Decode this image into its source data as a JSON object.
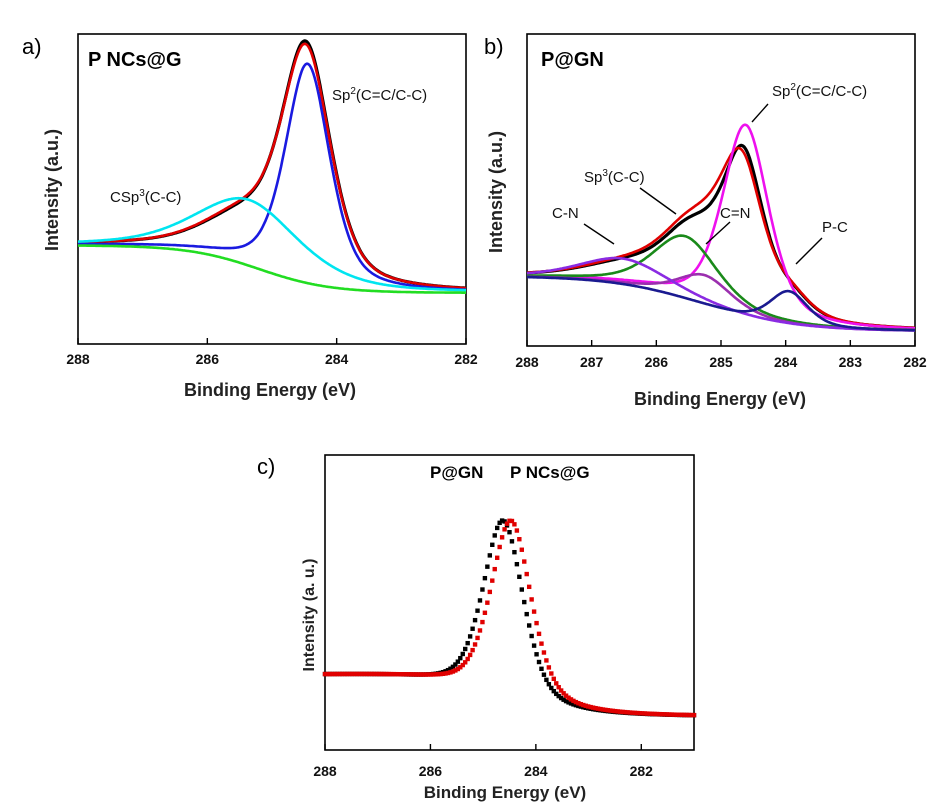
{
  "chart_data": [
    {
      "panel": "a)",
      "type": "line",
      "title": "P NCs@G",
      "xlabel": "Binding Energy (eV)",
      "ylabel": "Intensity (a.u.)",
      "xlim": [
        288,
        282
      ],
      "xticks": [
        288,
        286,
        284,
        282
      ],
      "xtick_labels": [
        "288",
        "286",
        "284",
        "282"
      ],
      "ylim": [
        0,
        1
      ],
      "grid": false,
      "annotations": [
        {
          "text": "CSp",
          "sup": "3",
          "rest": "(C-C)",
          "x": 286.6,
          "y": 0.5
        },
        {
          "text": "Sp",
          "sup": "2",
          "rest": "(C=C/C-C)",
          "x": 284.1,
          "y": 0.88
        }
      ],
      "series": [
        {
          "color": "#000000",
          "width": 3.2,
          "type": "pv",
          "peaks": [
            {
              "c": 284.47,
              "a": 0.62,
              "w": 0.9
            },
            {
              "c": 285.4,
              "a": 0.11,
              "w": 1.5
            }
          ],
          "bg": {
            "a": 0.27,
            "b": 0.14,
            "c": 285.2,
            "w": 0.55
          }
        },
        {
          "color": "#e00000",
          "width": 2.6,
          "type": "pv",
          "peaks": [
            {
              "c": 284.47,
              "a": 0.61,
              "w": 0.9
            },
            {
              "c": 285.4,
              "a": 0.115,
              "w": 1.5
            }
          ],
          "bg": {
            "a": 0.27,
            "b": 0.14,
            "c": 285.2,
            "w": 0.55
          }
        },
        {
          "color": "#1a1ae0",
          "width": 2.6,
          "type": "pv",
          "peaks": [
            {
              "c": 284.45,
              "a": 0.6,
              "w": 0.82
            }
          ],
          "bg": {
            "a": 0.27,
            "b": 0.14,
            "c": 285.2,
            "w": 0.55
          }
        },
        {
          "color": "#00e5f0",
          "width": 2.6,
          "type": "pv",
          "peaks": [
            {
              "c": 285.35,
              "a": 0.18,
              "w": 1.9
            }
          ],
          "bg": {
            "a": 0.27,
            "b": 0.14,
            "c": 285.2,
            "w": 0.55
          }
        },
        {
          "color": "#22dd22",
          "width": 2.6,
          "type": "bg",
          "bg": {
            "a": 0.27,
            "b": 0.14,
            "c": 285.2,
            "w": 0.55
          }
        }
      ]
    },
    {
      "panel": "b)",
      "type": "line",
      "title": "P@GN",
      "xlabel": "Binding Energy (eV)",
      "ylabel": "Intensity (a.u.)",
      "xlim": [
        288,
        282
      ],
      "xticks": [
        288,
        287,
        286,
        285,
        284,
        283,
        282
      ],
      "xtick_labels": [
        "288",
        "287",
        "286",
        "285",
        "284",
        "283",
        "282"
      ],
      "ylim": [
        0,
        1
      ],
      "grid": false,
      "annotations": [
        {
          "text": "Sp",
          "sup": "2",
          "rest": "(C=C/C-C)",
          "x": 284.4,
          "y": 0.82
        },
        {
          "text": "Sp",
          "sup": "3",
          "rest": "(C-C)",
          "x": 286.2,
          "y": 0.6
        },
        {
          "text": "C=N",
          "sup": "",
          "rest": "",
          "x": 285.0,
          "y": 0.5
        },
        {
          "text": "C-N",
          "sup": "",
          "rest": "",
          "x": 287.1,
          "y": 0.48
        },
        {
          "text": "P-C",
          "sup": "",
          "rest": "",
          "x": 283.5,
          "y": 0.4
        }
      ],
      "series": [
        {
          "color": "#000000",
          "width": 3.2,
          "type": "pv",
          "peaks": [
            {
              "c": 284.65,
              "a": 0.4,
              "w": 0.75
            },
            {
              "c": 285.5,
              "a": 0.13,
              "w": 1.1
            },
            {
              "c": 285.25,
              "a": 0.05,
              "w": 1.0
            },
            {
              "c": 286.5,
              "a": 0.04,
              "w": 1.5
            },
            {
              "c": 283.9,
              "a": 0.05,
              "w": 0.7
            }
          ],
          "bg": {
            "a": 0.19,
            "b": 0.04,
            "c": 285.3,
            "w": 0.7
          }
        },
        {
          "color": "#e00000",
          "width": 2.6,
          "type": "pv",
          "peaks": [
            {
              "c": 284.68,
              "a": 0.38,
              "w": 0.8
            },
            {
              "c": 285.5,
              "a": 0.14,
              "w": 1.15
            },
            {
              "c": 285.25,
              "a": 0.05,
              "w": 1.0
            },
            {
              "c": 286.5,
              "a": 0.04,
              "w": 1.5
            },
            {
              "c": 283.9,
              "a": 0.05,
              "w": 0.7
            }
          ],
          "bg": {
            "a": 0.19,
            "b": 0.04,
            "c": 285.3,
            "w": 0.7
          }
        },
        {
          "color": "#ee10ee",
          "width": 2.6,
          "type": "pv",
          "peaks": [
            {
              "c": 284.62,
              "a": 0.52,
              "w": 0.85
            }
          ],
          "bg": {
            "a": 0.19,
            "b": 0.04,
            "c": 285.3,
            "w": 0.7
          }
        },
        {
          "color": "#1a8a1a",
          "width": 2.6,
          "type": "pv",
          "peaks": [
            {
              "c": 285.55,
              "a": 0.17,
              "w": 1.2
            }
          ],
          "bg": {
            "a": 0.19,
            "b": 0.04,
            "c": 285.3,
            "w": 0.7
          }
        },
        {
          "color": "#9b2fae",
          "width": 2.6,
          "type": "pv",
          "peaks": [
            {
              "c": 285.25,
              "a": 0.08,
              "w": 1.0
            }
          ],
          "bg": {
            "a": 0.19,
            "b": 0.04,
            "c": 285.3,
            "w": 0.7
          }
        },
        {
          "color": "#8a2be2",
          "width": 2.6,
          "type": "pv",
          "peaks": [
            {
              "c": 286.5,
              "a": 0.07,
              "w": 1.6
            }
          ],
          "bg": {
            "a": 0.19,
            "b": 0.04,
            "c": 285.3,
            "w": 0.7
          }
        },
        {
          "color": "#1a1a90",
          "width": 2.6,
          "type": "pv",
          "peaks": [
            {
              "c": 283.95,
              "a": 0.09,
              "w": 0.7
            }
          ],
          "bg": {
            "a": 0.19,
            "b": 0.04,
            "c": 285.3,
            "w": 0.7
          }
        }
      ]
    },
    {
      "panel": "c)",
      "type": "scatter",
      "xlabel": "Binding Energy (eV)",
      "ylabel": "Intensity (a. u.)",
      "xlim": [
        288,
        281
      ],
      "xticks": [
        288,
        286,
        284,
        282
      ],
      "xtick_labels": [
        "288",
        "286",
        "284",
        "282"
      ],
      "ylim": [
        0,
        1
      ],
      "grid": false,
      "legend": [
        {
          "name": "P@GN",
          "color": "#000000"
        },
        {
          "name": "P NCs@G",
          "color": "#e00000"
        }
      ],
      "series": [
        {
          "name": "P@GN",
          "color": "#000000",
          "type": "pv",
          "peaks": [
            {
              "c": 284.62,
              "a": 0.66,
              "w": 0.92
            }
          ],
          "bg": {
            "a": 0.27,
            "b": 0.12,
            "c": 285.1,
            "w": 0.65
          }
        },
        {
          "name": "P NCs@G",
          "color": "#e00000",
          "type": "pv",
          "peaks": [
            {
              "c": 284.47,
              "a": 0.66,
              "w": 0.92
            }
          ],
          "bg": {
            "a": 0.27,
            "b": 0.12,
            "c": 284.95,
            "w": 0.65
          }
        }
      ]
    }
  ]
}
